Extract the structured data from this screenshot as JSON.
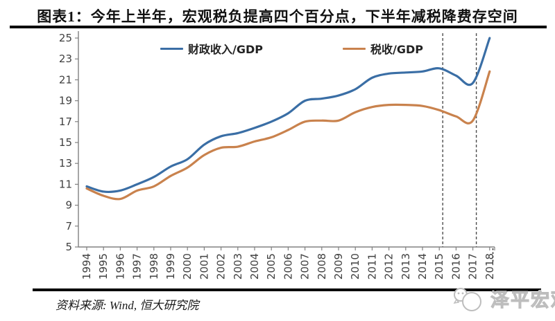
{
  "page": {
    "title": "图表1：今年上半年，宏观税负提高四个百分点，下半年减税降费存空间",
    "source": "资料来源: Wind, 恒大研究院",
    "watermark_text": "泽平宏观"
  },
  "colors": {
    "fiscal_line": "#3a6ea5",
    "tax_line": "#c9824d",
    "axis": "#808080",
    "tick_label": "#3f3f3f",
    "dashed_line": "#4d4d4d",
    "rule": "#000000",
    "watermark": "#c9c9c9"
  },
  "chart_data": {
    "type": "line",
    "x": [
      "1994",
      "1995",
      "1996",
      "1997",
      "1998",
      "1999",
      "2000",
      "2001",
      "2002",
      "2003",
      "2004",
      "2005",
      "2006",
      "2007",
      "2008",
      "2009",
      "2010",
      "2011",
      "2012",
      "2013",
      "2014",
      "2015",
      "2016",
      "2017",
      "2018"
    ],
    "series": [
      {
        "name": "财政收入/GDP",
        "color": "#3a6ea5",
        "values": [
          10.8,
          10.3,
          10.4,
          11.0,
          11.7,
          12.7,
          13.4,
          14.8,
          15.6,
          15.9,
          16.4,
          17.0,
          17.8,
          19.0,
          19.2,
          19.5,
          20.1,
          21.2,
          21.6,
          21.7,
          21.8,
          22.1,
          21.4,
          20.7,
          25.0
        ]
      },
      {
        "name": "税收/GDP",
        "color": "#c9824d",
        "values": [
          10.6,
          9.9,
          9.6,
          10.4,
          10.8,
          11.8,
          12.6,
          13.8,
          14.5,
          14.6,
          15.1,
          15.5,
          16.2,
          17.0,
          17.1,
          17.1,
          17.9,
          18.4,
          18.6,
          18.6,
          18.5,
          18.1,
          17.5,
          17.1,
          21.8
        ]
      }
    ],
    "ylim": [
      5,
      25
    ],
    "yticks": [
      5,
      7,
      9,
      11,
      13,
      15,
      17,
      19,
      21,
      23,
      25
    ],
    "xlabel": "",
    "ylabel": "",
    "legend_position": "top",
    "grid": false,
    "annotations": {
      "dashed_vlines_at_years": [
        "2015",
        "2017"
      ],
      "right_edge_dotted_mark": true
    }
  }
}
